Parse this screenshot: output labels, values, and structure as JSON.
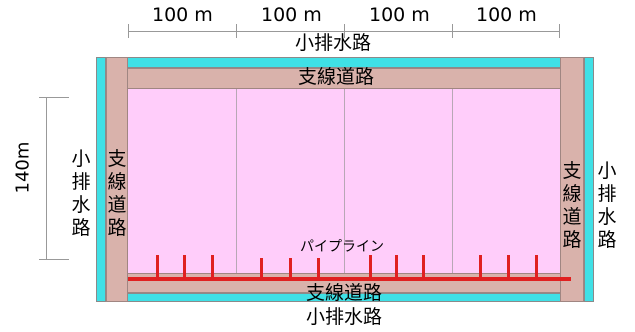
{
  "dimensions": {
    "top_segments": [
      "100 m",
      "100 m",
      "100 m",
      "100 m"
    ],
    "height": "140m"
  },
  "labels": {
    "top_drain": "小排水路",
    "top_road": "支線道路",
    "bottom_road": "支線道路",
    "bottom_drain": "小排水路",
    "left_road": [
      "支",
      "線",
      "道",
      "路"
    ],
    "left_drain": [
      "小",
      "排",
      "水",
      "路"
    ],
    "right_road": [
      "支",
      "線",
      "道",
      "路"
    ],
    "right_drain": [
      "小",
      "排",
      "水",
      "路"
    ],
    "pipeline": "パイプライン"
  },
  "colors": {
    "field": "#ffcdfa",
    "road": "#d9b2ab",
    "drain": "#3fe0e6",
    "pipeline": "#e02020"
  }
}
